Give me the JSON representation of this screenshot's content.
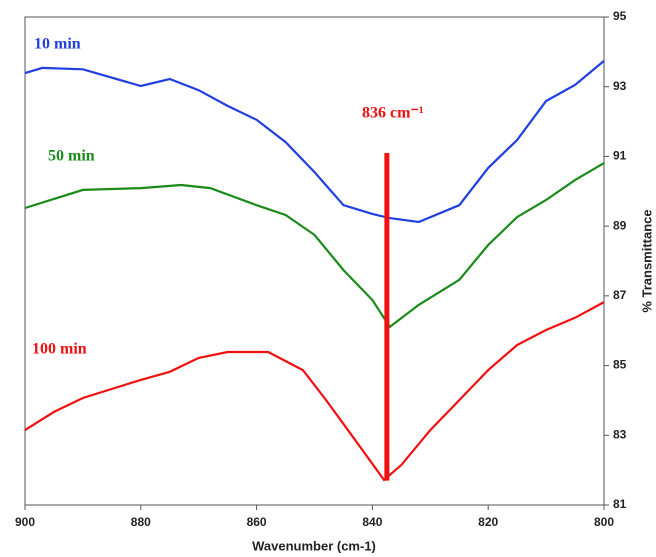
{
  "chart_data": {
    "type": "line",
    "x_label": "Wavenumber (cm-1)",
    "y_label": "% Transmittance",
    "xlim": [
      900,
      800
    ],
    "xticks": [
      900,
      880,
      860,
      840,
      820,
      800
    ],
    "ylim": [
      81,
      95
    ],
    "yticks": [
      81,
      83,
      85,
      87,
      89,
      91,
      93,
      95
    ],
    "series": [
      {
        "name": "10 min",
        "color": "#1f3fe0",
        "x": [
          900,
          897,
          890,
          880,
          875,
          870,
          865,
          860,
          855,
          850,
          845,
          840,
          837,
          832,
          825,
          820,
          815,
          810,
          805,
          800
        ],
        "values": [
          93.39,
          93.54,
          93.5,
          93.02,
          93.22,
          92.9,
          92.45,
          92.05,
          91.41,
          90.55,
          89.6,
          89.35,
          89.23,
          89.12,
          89.6,
          90.67,
          91.47,
          92.59,
          93.05,
          93.74
        ]
      },
      {
        "name": "50 min",
        "color": "#1a8a1a",
        "x": [
          900,
          890,
          880,
          873,
          868,
          860,
          855,
          850,
          845,
          840,
          837,
          832,
          825,
          820,
          815,
          810,
          805,
          800
        ],
        "values": [
          89.52,
          90.04,
          90.09,
          90.18,
          90.09,
          89.6,
          89.32,
          88.75,
          87.74,
          86.88,
          86.11,
          86.74,
          87.46,
          88.46,
          89.26,
          89.75,
          90.32,
          90.81
        ]
      },
      {
        "name": "100 min",
        "color": "#f01010",
        "x": [
          900,
          895,
          890,
          880,
          875,
          870,
          865,
          858,
          852,
          848,
          843,
          838,
          835,
          830,
          825,
          820,
          815,
          810,
          805,
          800
        ],
        "values": [
          83.15,
          83.67,
          84.07,
          84.59,
          84.82,
          85.22,
          85.39,
          85.39,
          84.87,
          84.01,
          82.87,
          81.72,
          82.15,
          83.15,
          84.01,
          84.87,
          85.59,
          86.02,
          86.37,
          86.82
        ]
      }
    ],
    "annotation": {
      "text": "836 cm⁻¹",
      "color": "#f01010",
      "x": 837.5,
      "y": [
        81.7,
        91.1
      ]
    }
  }
}
